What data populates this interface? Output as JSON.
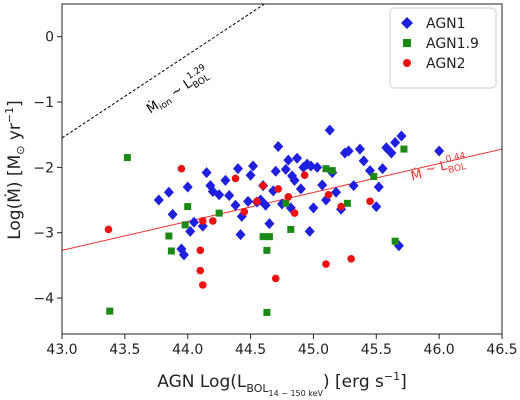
{
  "chart_data": {
    "type": "scatter",
    "xlabel": "AGN Log(L",
    "xlabel_sub": "BOL",
    "xlabel_subsub": "14 − 150 keV",
    "xlabel_tail": ") [erg s",
    "xlabel_exp": "−1",
    "xlabel_end": "]",
    "ylabel": "Log(Ṁ) [M",
    "ylabel_sun": "⊙",
    "ylabel_tail": " yr",
    "ylabel_exp": "−1",
    "ylabel_end": "]",
    "xlim": [
      43.0,
      46.5
    ],
    "ylim": [
      -4.55,
      0.5
    ],
    "xticks": [
      "43.0",
      "43.5",
      "44.0",
      "44.5",
      "45.0",
      "45.5",
      "46.0",
      "46.5"
    ],
    "yticks": [
      "0",
      "−1",
      "−2",
      "−3",
      "−4"
    ],
    "legend_position": "top-right",
    "series": [
      {
        "name": "AGN1",
        "color": "#1f1fe0",
        "marker": "diamond",
        "points": [
          [
            43.77,
            -2.5
          ],
          [
            43.85,
            -2.38
          ],
          [
            43.88,
            -2.72
          ],
          [
            43.95,
            -3.25
          ],
          [
            43.97,
            -3.34
          ],
          [
            44.0,
            -2.3
          ],
          [
            44.02,
            -2.98
          ],
          [
            44.05,
            -2.84
          ],
          [
            44.12,
            -2.9
          ],
          [
            44.15,
            -2.08
          ],
          [
            44.18,
            -2.28
          ],
          [
            44.2,
            -2.37
          ],
          [
            44.25,
            -2.42
          ],
          [
            44.3,
            -2.2
          ],
          [
            44.33,
            -2.43
          ],
          [
            44.38,
            -2.58
          ],
          [
            44.4,
            -2.02
          ],
          [
            44.42,
            -3.03
          ],
          [
            44.43,
            -2.75
          ],
          [
            44.48,
            -2.52
          ],
          [
            44.5,
            -2.12
          ],
          [
            44.52,
            -1.98
          ],
          [
            44.55,
            -2.53
          ],
          [
            44.58,
            -2.5
          ],
          [
            44.6,
            -2.28
          ],
          [
            44.62,
            -2.58
          ],
          [
            44.65,
            -2.86
          ],
          [
            44.68,
            -2.36
          ],
          [
            44.7,
            -2.06
          ],
          [
            44.72,
            -1.68
          ],
          [
            44.75,
            -2.56
          ],
          [
            44.78,
            -2.03
          ],
          [
            44.8,
            -1.89
          ],
          [
            44.82,
            -2.62
          ],
          [
            44.83,
            -2.13
          ],
          [
            44.85,
            -2.2
          ],
          [
            44.87,
            -1.86
          ],
          [
            44.9,
            -2.33
          ],
          [
            44.92,
            -2.0
          ],
          [
            44.95,
            -1.95
          ],
          [
            44.97,
            -2.98
          ],
          [
            44.98,
            -1.98
          ],
          [
            45.0,
            -2.62
          ],
          [
            45.03,
            -2.0
          ],
          [
            45.07,
            -2.27
          ],
          [
            45.1,
            -2.5
          ],
          [
            45.13,
            -1.43
          ],
          [
            45.15,
            -2.08
          ],
          [
            45.18,
            -2.38
          ],
          [
            45.22,
            -2.64
          ],
          [
            45.25,
            -1.78
          ],
          [
            45.28,
            -1.75
          ],
          [
            45.32,
            -2.28
          ],
          [
            45.37,
            -1.72
          ],
          [
            45.4,
            -1.9
          ],
          [
            45.45,
            -2.05
          ],
          [
            45.5,
            -2.6
          ],
          [
            45.52,
            -2.3
          ],
          [
            45.55,
            -2.02
          ],
          [
            45.58,
            -1.7
          ],
          [
            45.62,
            -1.78
          ],
          [
            45.65,
            -1.62
          ],
          [
            45.68,
            -3.2
          ],
          [
            45.7,
            -1.52
          ],
          [
            46.0,
            -1.75
          ]
        ]
      },
      {
        "name": "AGN1.9",
        "color": "#1a8a14",
        "marker": "square",
        "points": [
          [
            43.38,
            -4.2
          ],
          [
            43.52,
            -1.85
          ],
          [
            43.85,
            -3.05
          ],
          [
            43.87,
            -3.28
          ],
          [
            44.0,
            -2.6
          ],
          [
            43.98,
            -2.88
          ],
          [
            44.25,
            -2.7
          ],
          [
            44.6,
            -3.06
          ],
          [
            44.63,
            -4.22
          ],
          [
            44.63,
            -3.27
          ],
          [
            44.65,
            -3.06
          ],
          [
            44.78,
            -2.55
          ],
          [
            44.82,
            -2.95
          ],
          [
            45.1,
            -2.02
          ],
          [
            45.15,
            -2.05
          ],
          [
            45.27,
            -2.55
          ],
          [
            45.48,
            -2.14
          ],
          [
            45.65,
            -3.13
          ],
          [
            45.72,
            -1.72
          ]
        ]
      },
      {
        "name": "AGN2",
        "color": "#ee1111",
        "marker": "circle",
        "points": [
          [
            43.37,
            -2.95
          ],
          [
            43.95,
            -2.02
          ],
          [
            44.1,
            -3.58
          ],
          [
            44.1,
            -3.27
          ],
          [
            44.12,
            -3.8
          ],
          [
            44.12,
            -2.82
          ],
          [
            44.2,
            -2.82
          ],
          [
            44.38,
            -2.17
          ],
          [
            44.45,
            -2.68
          ],
          [
            44.55,
            -2.52
          ],
          [
            44.6,
            -2.28
          ],
          [
            44.7,
            -3.7
          ],
          [
            44.72,
            -2.33
          ],
          [
            44.8,
            -2.45
          ],
          [
            44.85,
            -2.7
          ],
          [
            44.93,
            -2.12
          ],
          [
            45.1,
            -3.48
          ],
          [
            45.12,
            -2.42
          ],
          [
            45.22,
            -2.6
          ],
          [
            45.3,
            -3.4
          ],
          [
            45.45,
            -2.52
          ]
        ]
      }
    ],
    "lines": [
      {
        "label_main": "Ṁ",
        "label_sub": "ion",
        "label_mid": " ∼ L",
        "label_sup": "1.29",
        "label_sub2": "BOL",
        "style": "dashed",
        "color": "#000000",
        "from": [
          43.0,
          -1.55
        ],
        "to": [
          44.65,
          0.55
        ]
      },
      {
        "label_main": "Ṁ",
        "label_sub": "",
        "label_mid": " ∼ L",
        "label_sup": "0.44",
        "label_sub2": "BOL",
        "style": "solid",
        "color": "#ee3333",
        "from": [
          43.0,
          -3.27
        ],
        "to": [
          46.5,
          -1.72
        ]
      }
    ]
  }
}
